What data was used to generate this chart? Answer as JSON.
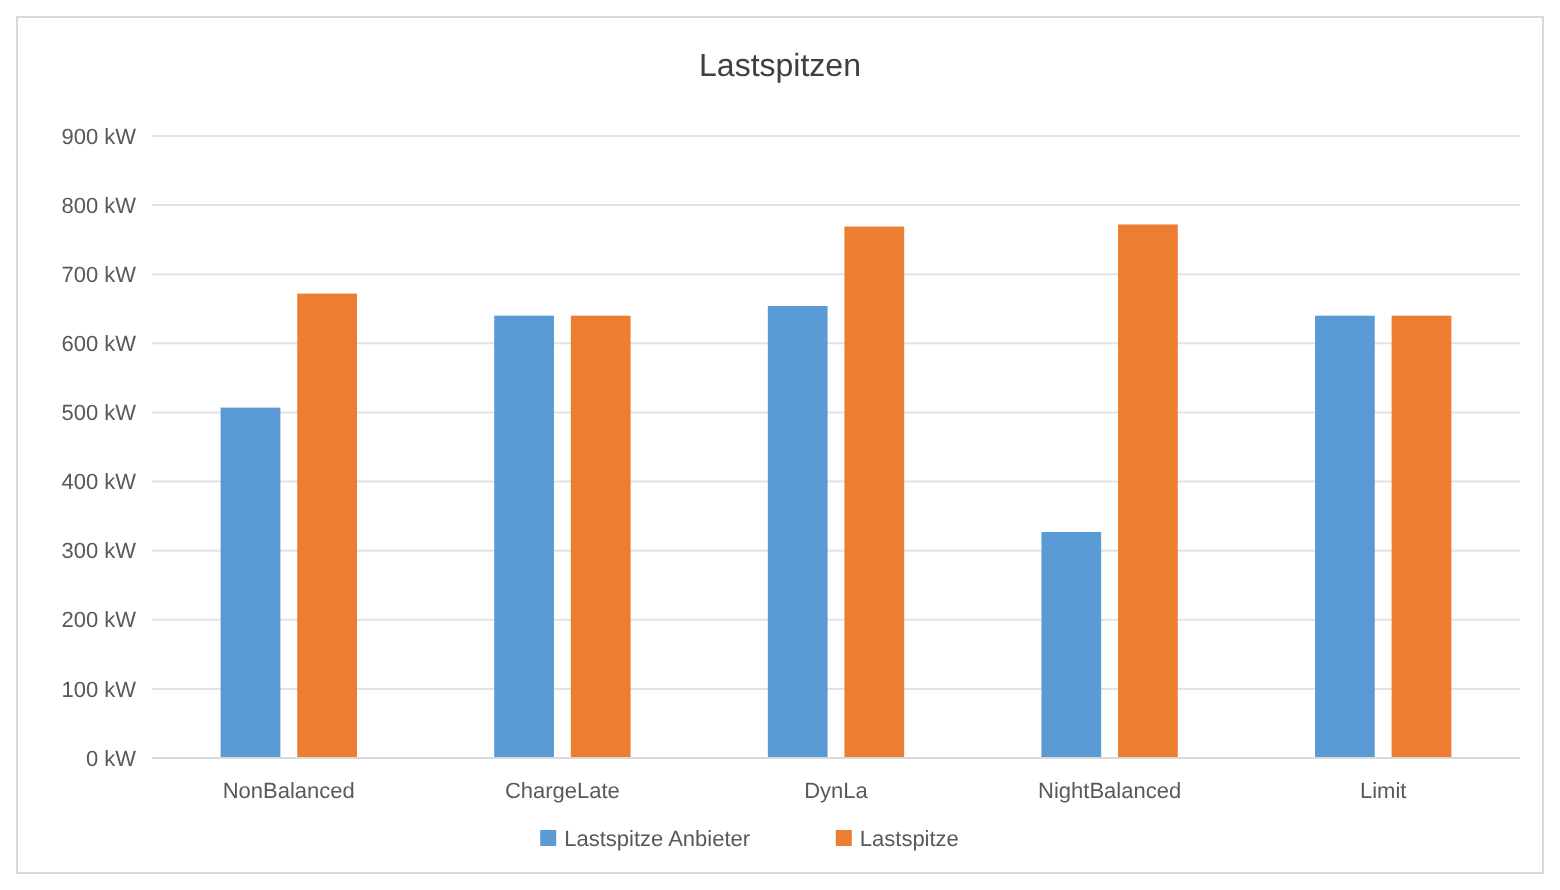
{
  "chart_data": {
    "type": "bar",
    "title": "Lastspitzen",
    "categories": [
      "NonBalanced",
      "ChargeLate",
      "DynLa",
      "NightBalanced",
      "Limit"
    ],
    "series": [
      {
        "name": "Lastspitze Anbieter",
        "color": "#5b9bd5",
        "values": [
          507,
          640,
          654,
          327,
          640
        ]
      },
      {
        "name": "Lastspitze",
        "color": "#ed7d31",
        "values": [
          672,
          640,
          769,
          772,
          640
        ]
      }
    ],
    "ylim": [
      0,
      900
    ],
    "yticks": [
      {
        "value": 0,
        "label": "0 kW"
      },
      {
        "value": 100,
        "label": "100 kW"
      },
      {
        "value": 200,
        "label": "200 kW"
      },
      {
        "value": 300,
        "label": "300 kW"
      },
      {
        "value": 400,
        "label": "400 kW"
      },
      {
        "value": 500,
        "label": "500 kW"
      },
      {
        "value": 600,
        "label": "600 kW"
      },
      {
        "value": 700,
        "label": "700 kW"
      },
      {
        "value": 800,
        "label": "800 kW"
      },
      {
        "value": 900,
        "label": "900 kW"
      }
    ],
    "grid": true,
    "legend": "bottom"
  }
}
